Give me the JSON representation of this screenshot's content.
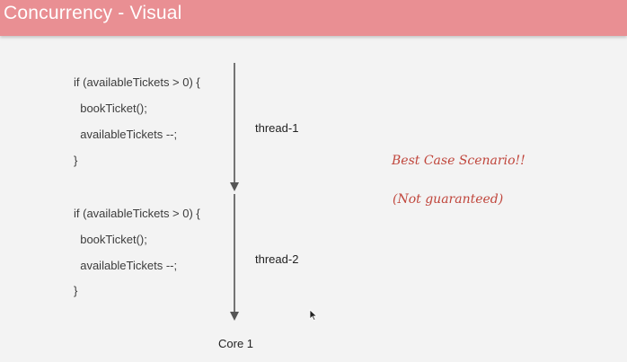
{
  "header": {
    "title": "Concurrency - Visual",
    "background": "#e98f93"
  },
  "blocks": [
    {
      "lines": [
        "if (availableTickets > 0) {",
        "  bookTicket();",
        "  availableTickets --;",
        "}"
      ],
      "thread_label": "thread-1"
    },
    {
      "lines": [
        "if (availableTickets > 0) {",
        "  bookTicket();",
        "  availableTickets --;",
        "}"
      ],
      "thread_label": "thread-2"
    }
  ],
  "notes": {
    "line1": "Best Case Scenario!!",
    "line2": "(Not guaranteed)",
    "color": "#c0463c"
  },
  "core_label": "Core 1",
  "icons": [
    "arrow-down-icon",
    "mouse-cursor-icon"
  ]
}
